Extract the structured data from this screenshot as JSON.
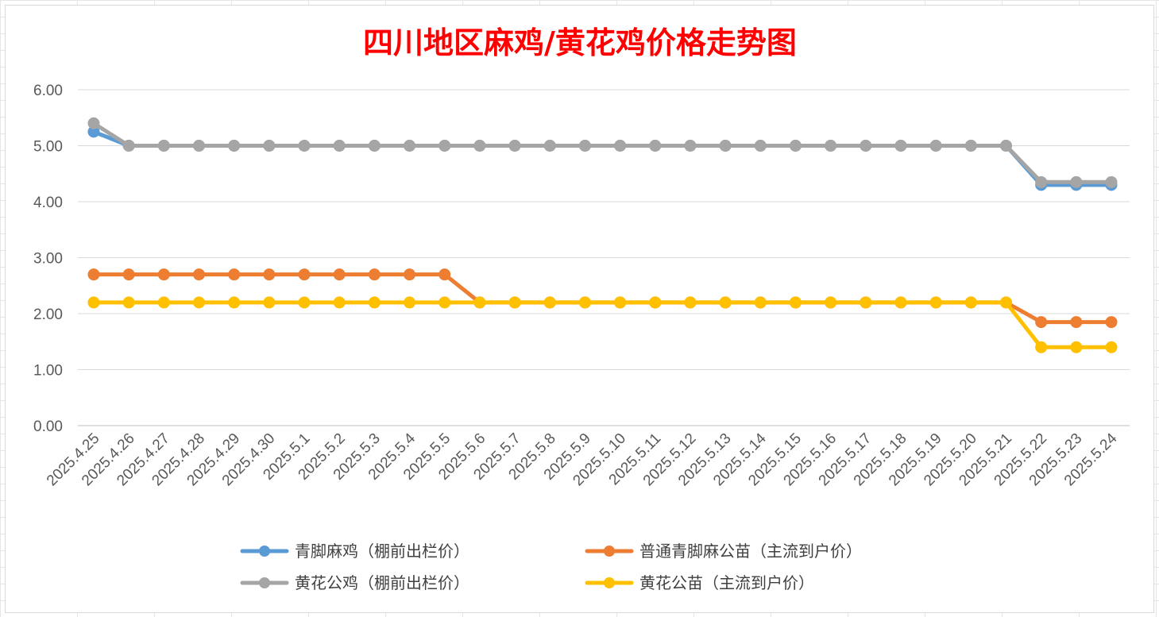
{
  "chart_data": {
    "type": "line",
    "title": "四川地区麻鸡/黄花鸡价格走势图",
    "title_color": "#ff0000",
    "xlabel": "",
    "ylabel": "",
    "ylim": [
      0,
      6
    ],
    "y_ticks": [
      "0.00",
      "1.00",
      "2.00",
      "3.00",
      "4.00",
      "5.00",
      "6.00"
    ],
    "grid": true,
    "legend_position": "bottom",
    "categories": [
      "2025.4.25",
      "2025.4.26",
      "2025.4.27",
      "2025.4.28",
      "2025.4.29",
      "2025.4.30",
      "2025.5.1",
      "2025.5.2",
      "2025.5.3",
      "2025.5.4",
      "2025.5.5",
      "2025.5.6",
      "2025.5.7",
      "2025.5.8",
      "2025.5.9",
      "2025.5.10",
      "2025.5.11",
      "2025.5.12",
      "2025.5.13",
      "2025.5.14",
      "2025.5.15",
      "2025.5.16",
      "2025.5.17",
      "2025.5.18",
      "2025.5.19",
      "2025.5.20",
      "2025.5.21",
      "2025.5.22",
      "2025.5.23",
      "2025.5.24"
    ],
    "series": [
      {
        "name": "青脚麻鸡（棚前出栏价）",
        "color": "#5b9bd5",
        "values": [
          5.25,
          5.0,
          5.0,
          5.0,
          5.0,
          5.0,
          5.0,
          5.0,
          5.0,
          5.0,
          5.0,
          5.0,
          5.0,
          5.0,
          5.0,
          5.0,
          5.0,
          5.0,
          5.0,
          5.0,
          5.0,
          5.0,
          5.0,
          5.0,
          5.0,
          5.0,
          5.0,
          4.3,
          4.3,
          4.3
        ]
      },
      {
        "name": "普通青脚麻公苗（主流到户价）",
        "color": "#ed7d31",
        "values": [
          2.7,
          2.7,
          2.7,
          2.7,
          2.7,
          2.7,
          2.7,
          2.7,
          2.7,
          2.7,
          2.7,
          2.2,
          2.2,
          2.2,
          2.2,
          2.2,
          2.2,
          2.2,
          2.2,
          2.2,
          2.2,
          2.2,
          2.2,
          2.2,
          2.2,
          2.2,
          2.2,
          1.85,
          1.85,
          1.85
        ]
      },
      {
        "name": "黄花公鸡（棚前出栏价）",
        "color": "#a5a5a5",
        "values": [
          5.4,
          5.0,
          5.0,
          5.0,
          5.0,
          5.0,
          5.0,
          5.0,
          5.0,
          5.0,
          5.0,
          5.0,
          5.0,
          5.0,
          5.0,
          5.0,
          5.0,
          5.0,
          5.0,
          5.0,
          5.0,
          5.0,
          5.0,
          5.0,
          5.0,
          5.0,
          5.0,
          4.35,
          4.35,
          4.35
        ]
      },
      {
        "name": "黄花公苗（主流到户价）",
        "color": "#ffc000",
        "values": [
          2.2,
          2.2,
          2.2,
          2.2,
          2.2,
          2.2,
          2.2,
          2.2,
          2.2,
          2.2,
          2.2,
          2.2,
          2.2,
          2.2,
          2.2,
          2.2,
          2.2,
          2.2,
          2.2,
          2.2,
          2.2,
          2.2,
          2.2,
          2.2,
          2.2,
          2.2,
          2.2,
          1.4,
          1.4,
          1.4
        ]
      }
    ],
    "draw_order": [
      1,
      3,
      0,
      2
    ]
  }
}
